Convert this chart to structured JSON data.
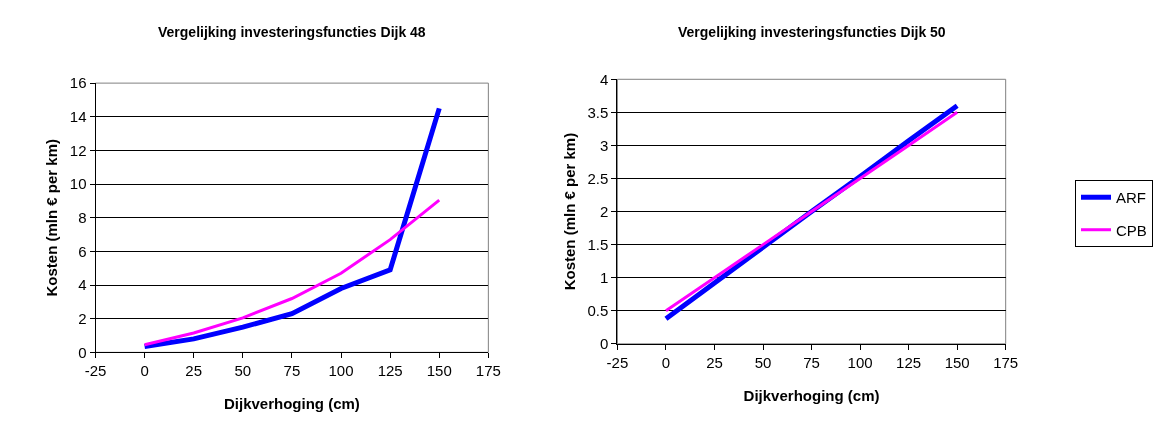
{
  "chart_data": [
    {
      "type": "line",
      "title": "Vergelijking investeringsfuncties Dijk 48",
      "xlabel": "Dijkverhoging (cm)",
      "ylabel": "Kosten (mln € per km)",
      "x": [
        0,
        25,
        50,
        75,
        100,
        125,
        150
      ],
      "series": [
        {
          "name": "ARF",
          "color": "#0000ff",
          "values": [
            0.35,
            0.8,
            1.5,
            2.3,
            3.8,
            4.9,
            14.5
          ]
        },
        {
          "name": "CPB",
          "color": "#ff00ff",
          "values": [
            0.45,
            1.15,
            2.05,
            3.2,
            4.7,
            6.7,
            9.05
          ]
        }
      ],
      "xlim": [
        -25,
        175
      ],
      "xticks": [
        -25,
        0,
        25,
        50,
        75,
        100,
        125,
        150,
        175
      ],
      "ylim": [
        0,
        16
      ],
      "yticks": [
        0,
        2,
        4,
        6,
        8,
        10,
        12,
        14,
        16
      ],
      "grid": "y",
      "legend": "right",
      "marker": "none",
      "line_style": "solid"
    },
    {
      "type": "line",
      "title": "Vergelijking investeringsfuncties Dijk 50",
      "xlabel": "Dijkverhoging (cm)",
      "ylabel": "Kosten (mln € per km)",
      "x": [
        0,
        25,
        50,
        75,
        100,
        125,
        150
      ],
      "series": [
        {
          "name": "ARF",
          "color": "#0000ff",
          "values": [
            0.38,
            0.92,
            1.46,
            2.0,
            2.53,
            3.07,
            3.6
          ]
        },
        {
          "name": "CPB",
          "color": "#ff00ff",
          "values": [
            0.5,
            1.0,
            1.5,
            2.0,
            2.5,
            3.0,
            3.5
          ]
        }
      ],
      "xlim": [
        -25,
        175
      ],
      "xticks": [
        -25,
        0,
        25,
        50,
        75,
        100,
        125,
        150,
        175
      ],
      "ylim": [
        0,
        4
      ],
      "yticks": [
        0,
        0.5,
        1,
        1.5,
        2,
        2.5,
        3,
        3.5,
        4
      ],
      "grid": "y",
      "legend": "right",
      "marker": "none",
      "line_style": "solid"
    }
  ]
}
